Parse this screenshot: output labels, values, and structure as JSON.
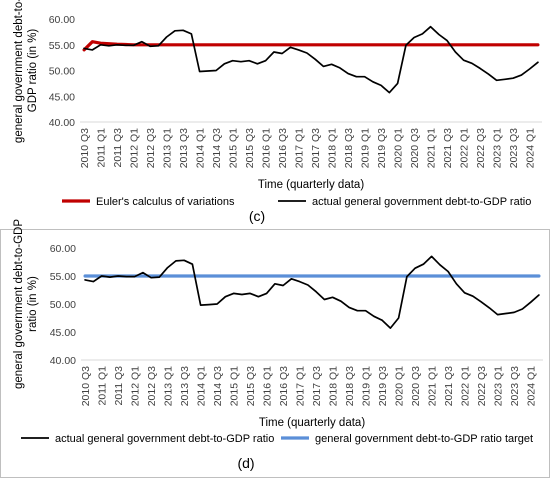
{
  "chart_data": [
    {
      "type": "line",
      "panel_label": "(c)",
      "ylabel": "general government debt-to-GDP ratio  (in %)",
      "ylabel_lines": [
        "general government debt-to-",
        "GDP ratio  (in %)"
      ],
      "xlabel": "Time (quarterly data)",
      "ylim": [
        40,
        60
      ],
      "yticks": [
        "40.00",
        "45.00",
        "50.00",
        "55.00",
        "60.00"
      ],
      "ytick_values": [
        40,
        45,
        50,
        55,
        60
      ],
      "xtick_labels": [
        "2010 Q3",
        "2011 Q1",
        "2011 Q3",
        "2012 Q1",
        "2012 Q3",
        "2013 Q1",
        "2013 Q3",
        "2014 Q1",
        "2014 Q3",
        "2015 Q1",
        "2015 Q3",
        "2016 Q1",
        "2016 Q3",
        "2017 Q1",
        "2017 Q3",
        "2018 Q1",
        "2018 Q3",
        "2019 Q1",
        "2019 Q3",
        "2020 Q1",
        "2020 Q3",
        "2021 Q1",
        "2021 Q3",
        "2022 Q1",
        "2022 Q3",
        "2023 Q1",
        "2023 Q3",
        "2024 Q1"
      ],
      "grid": false,
      "legend_position": "bottom",
      "series": [
        {
          "name": "Euler's calculus of variations",
          "color": "#c00000",
          "values": [
            54.0,
            55.6,
            55.3,
            55.2,
            55.1,
            55.05,
            55.0,
            55.0,
            55.0,
            55.0,
            55.0,
            55.0,
            55.0,
            55.0,
            55.0,
            55.0,
            55.0,
            55.0,
            55.0,
            55.0,
            55.0,
            55.0,
            55.0,
            55.0,
            55.0,
            55.0,
            55.0,
            55.0,
            55.0,
            55.0,
            55.0,
            55.0,
            55.0,
            55.0,
            55.0,
            55.0,
            55.0,
            55.0,
            55.0,
            55.0,
            55.0,
            55.0,
            55.0,
            55.0,
            55.0,
            55.0,
            55.0,
            55.0,
            55.0,
            55.0,
            55.0,
            55.0,
            55.0,
            55.0,
            55.0,
            55.0
          ]
        },
        {
          "name": "actual general government debt-to-GDP ratio",
          "color": "#000000",
          "values": [
            54.3,
            54.0,
            55.0,
            54.8,
            55.0,
            54.9,
            54.9,
            55.6,
            54.7,
            54.8,
            56.5,
            57.7,
            57.8,
            57.1,
            49.8,
            49.9,
            50.0,
            51.3,
            51.9,
            51.7,
            51.9,
            51.3,
            51.9,
            53.6,
            53.3,
            54.5,
            54.0,
            53.4,
            52.2,
            50.8,
            51.2,
            50.5,
            49.4,
            48.8,
            48.8,
            47.8,
            47.1,
            45.7,
            47.5,
            54.9,
            56.4,
            57.1,
            58.5,
            57.0,
            55.8,
            53.6,
            52.0,
            51.4,
            50.4,
            49.3,
            48.1,
            48.3,
            48.5,
            49.1,
            50.3,
            51.6
          ]
        }
      ]
    },
    {
      "type": "line",
      "panel_label": "(d)",
      "ylabel": "general government debt-to-GDP ratio (in %)",
      "ylabel_lines": [
        "general government debt-to-GDP",
        "ratio (in %)"
      ],
      "xlabel": "Time (quarterly data)",
      "ylim": [
        40,
        60
      ],
      "yticks": [
        "40.00",
        "45.00",
        "50.00",
        "55.00",
        "60.00"
      ],
      "ytick_values": [
        40,
        45,
        50,
        55,
        60
      ],
      "xtick_labels": [
        "2010 Q3",
        "2011 Q1",
        "2011 Q3",
        "2012 Q1",
        "2012 Q3",
        "2013 Q1",
        "2013 Q3",
        "2014 Q1",
        "2014 Q3",
        "2015 Q1",
        "2015 Q3",
        "2016 Q1",
        "2016 Q3",
        "2017 Q1",
        "2017 Q3",
        "2018 Q1",
        "2018 Q3",
        "2019 Q1",
        "2019 Q3",
        "2020 Q1",
        "2020 Q3",
        "2021 Q1",
        "2021 Q3",
        "2022 Q1",
        "2022 Q3",
        "2023 Q1",
        "2023 Q3",
        "2024 Q1"
      ],
      "grid": false,
      "legend_position": "bottom",
      "series": [
        {
          "name": "general government debt-to-GDP ratio target",
          "color": "#5b8fd8",
          "values": [
            55.0,
            55.0,
            55.0,
            55.0,
            55.0,
            55.0,
            55.0,
            55.0,
            55.0,
            55.0,
            55.0,
            55.0,
            55.0,
            55.0,
            55.0,
            55.0,
            55.0,
            55.0,
            55.0,
            55.0,
            55.0,
            55.0,
            55.0,
            55.0,
            55.0,
            55.0,
            55.0,
            55.0,
            55.0,
            55.0,
            55.0,
            55.0,
            55.0,
            55.0,
            55.0,
            55.0,
            55.0,
            55.0,
            55.0,
            55.0,
            55.0,
            55.0,
            55.0,
            55.0,
            55.0,
            55.0,
            55.0,
            55.0,
            55.0,
            55.0,
            55.0,
            55.0,
            55.0,
            55.0,
            55.0,
            55.0
          ]
        },
        {
          "name": "actual general government debt-to-GDP ratio",
          "color": "#000000",
          "values": [
            54.3,
            54.0,
            55.0,
            54.8,
            55.0,
            54.9,
            54.9,
            55.6,
            54.7,
            54.8,
            56.5,
            57.7,
            57.8,
            57.1,
            49.8,
            49.9,
            50.0,
            51.3,
            51.9,
            51.7,
            51.9,
            51.3,
            51.9,
            53.6,
            53.3,
            54.5,
            54.0,
            53.4,
            52.2,
            50.8,
            51.2,
            50.5,
            49.4,
            48.8,
            48.8,
            47.8,
            47.1,
            45.7,
            47.5,
            54.9,
            56.4,
            57.1,
            58.5,
            57.0,
            55.8,
            53.6,
            52.0,
            51.4,
            50.4,
            49.3,
            48.1,
            48.3,
            48.5,
            49.1,
            50.3,
            51.6
          ]
        }
      ],
      "legend_order": [
        1,
        0
      ]
    }
  ]
}
